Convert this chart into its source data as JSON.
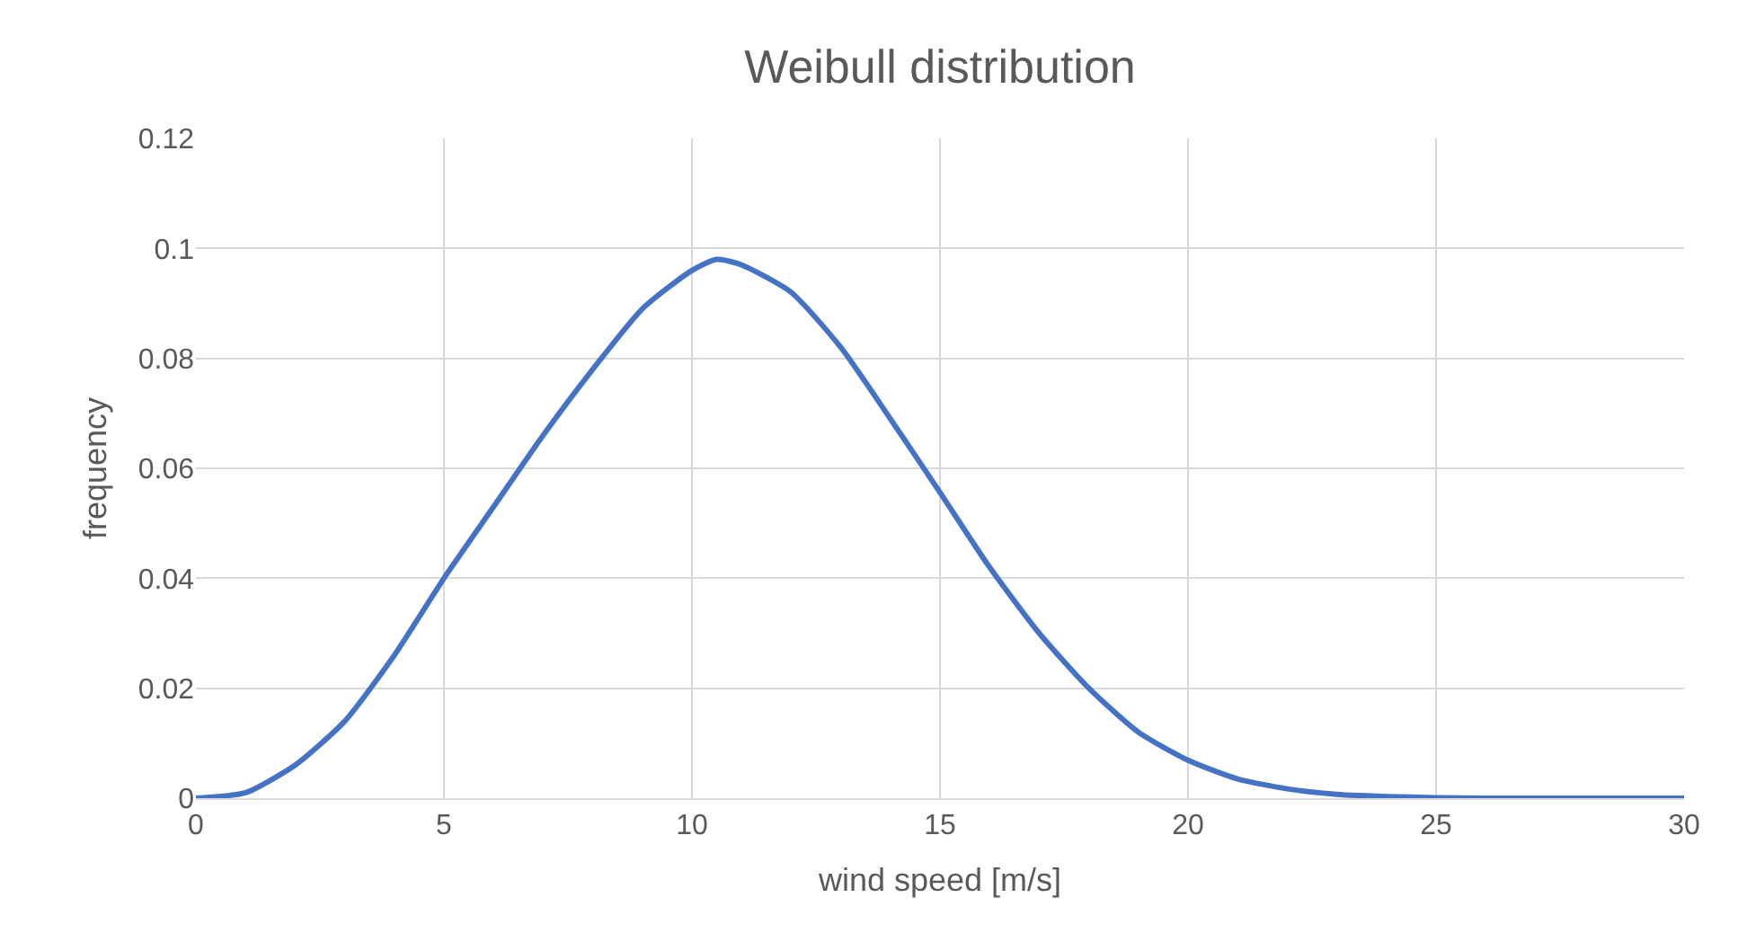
{
  "chart_data": {
    "type": "line",
    "title": "Weibull distribution",
    "xlabel": "wind speed [m/s]",
    "ylabel": "frequency",
    "x": [
      0,
      1,
      2,
      3,
      4,
      5,
      6,
      7,
      8,
      9,
      10,
      10.5,
      11,
      12,
      13,
      14,
      15,
      16,
      17,
      18,
      19,
      20,
      21,
      22,
      23,
      24,
      25,
      26,
      27,
      28,
      29,
      30
    ],
    "series": [
      {
        "color": "#4472c4",
        "values": [
          0,
          0.001,
          0.006,
          0.014,
          0.026,
          0.04,
          0.053,
          0.066,
          0.078,
          0.089,
          0.096,
          0.098,
          0.097,
          0.092,
          0.082,
          0.069,
          0.0556,
          0.042,
          0.03,
          0.02,
          0.012,
          0.0069,
          0.0035,
          0.0017,
          0.0007,
          0.0003,
          0.0001,
          0,
          0,
          0,
          0,
          0
        ]
      }
    ],
    "xlim": [
      0,
      30
    ],
    "xticks": [
      0,
      5,
      10,
      15,
      20,
      25,
      30
    ],
    "ylim": [
      0,
      0.12
    ],
    "yticks": [
      0,
      0.02,
      0.04,
      0.06,
      0.08,
      0.1,
      0.12
    ],
    "grid": true,
    "marker": "none",
    "line_style": "solid"
  }
}
